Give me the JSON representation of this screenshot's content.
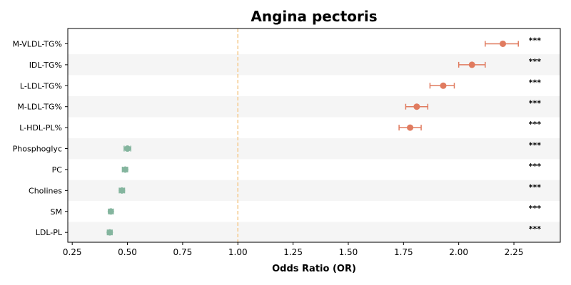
{
  "chart_data": {
    "type": "scatter",
    "title": "Angina pectoris",
    "xlabel": "Odds Ratio (OR)",
    "ylabel": "",
    "xlim": [
      0.23,
      2.46
    ],
    "xticks": [
      0.25,
      0.5,
      0.75,
      1.0,
      1.25,
      1.5,
      1.75,
      2.0,
      2.25
    ],
    "xtick_labels": [
      "0.25",
      "0.50",
      "0.75",
      "1.00",
      "1.25",
      "1.50",
      "1.75",
      "2.00",
      "2.25"
    ],
    "reference_line": 1.0,
    "grid": false,
    "band_color": "#f5f5f5",
    "reference_color": "#f5c98a",
    "colors": {
      "increased": "#e07b5f",
      "decreased": "#84b59e"
    },
    "rows": [
      {
        "label": "M-VLDL-TG%",
        "or": 2.2,
        "lo": 2.12,
        "hi": 2.27,
        "sig": "***",
        "direction": "increased"
      },
      {
        "label": "IDL-TG%",
        "or": 2.06,
        "lo": 2.0,
        "hi": 2.12,
        "sig": "***",
        "direction": "increased"
      },
      {
        "label": "L-LDL-TG%",
        "or": 1.93,
        "lo": 1.87,
        "hi": 1.98,
        "sig": "***",
        "direction": "increased"
      },
      {
        "label": "M-LDL-TG%",
        "or": 1.81,
        "lo": 1.76,
        "hi": 1.86,
        "sig": "***",
        "direction": "increased"
      },
      {
        "label": "L-HDL-PL%",
        "or": 1.78,
        "lo": 1.73,
        "hi": 1.83,
        "sig": "***",
        "direction": "increased"
      },
      {
        "label": "Phosphoglyc",
        "or": 0.5,
        "lo": 0.485,
        "hi": 0.515,
        "sig": "***",
        "direction": "decreased"
      },
      {
        "label": "PC",
        "or": 0.49,
        "lo": 0.477,
        "hi": 0.501,
        "sig": "***",
        "direction": "decreased"
      },
      {
        "label": "Cholines",
        "or": 0.475,
        "lo": 0.463,
        "hi": 0.487,
        "sig": "***",
        "direction": "decreased"
      },
      {
        "label": "SM",
        "or": 0.425,
        "lo": 0.414,
        "hi": 0.436,
        "sig": "***",
        "direction": "decreased"
      },
      {
        "label": "LDL-PL",
        "or": 0.42,
        "lo": 0.409,
        "hi": 0.431,
        "sig": "***",
        "direction": "decreased"
      }
    ]
  }
}
